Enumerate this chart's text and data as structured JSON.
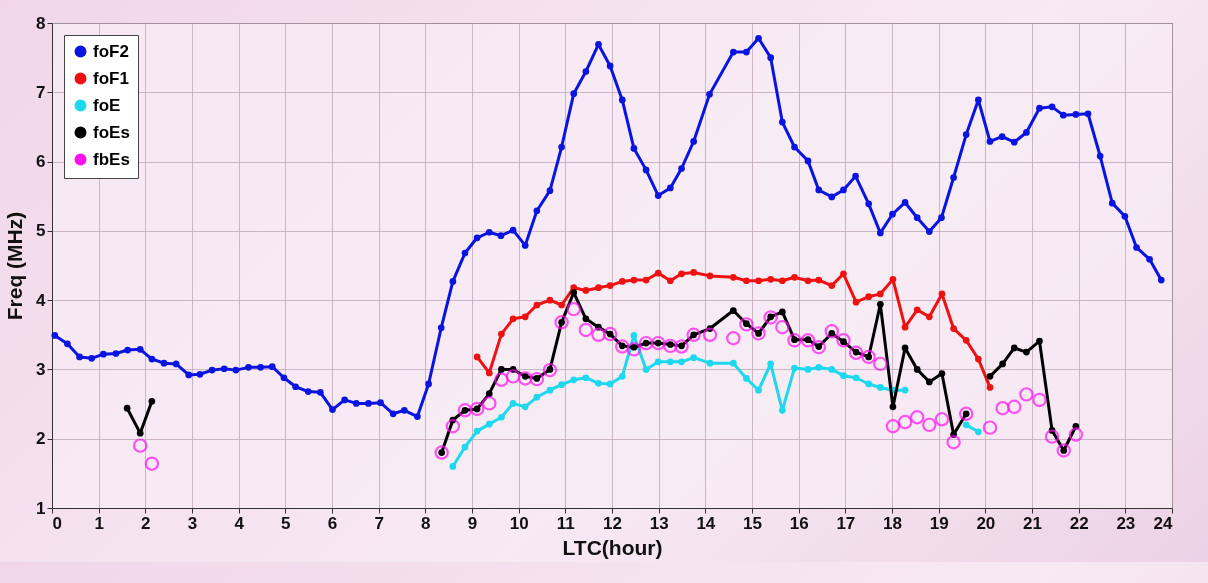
{
  "chart_data": {
    "type": "line",
    "xlabel": "LTC(hour)",
    "ylabel": "Freq (MHz)",
    "xlim": [
      0,
      24
    ],
    "ylim": [
      1,
      8
    ],
    "xticks": [
      0,
      1,
      2,
      3,
      4,
      5,
      6,
      7,
      8,
      9,
      10,
      11,
      12,
      13,
      14,
      15,
      16,
      17,
      18,
      19,
      20,
      21,
      22,
      23,
      24
    ],
    "yticks": [
      1,
      2,
      3,
      4,
      5,
      6,
      7,
      8
    ],
    "grid": true,
    "legend": "top left",
    "marker": "circle",
    "series": [
      {
        "name": "foF2",
        "color": "#0a14e0",
        "x": [
          0.06,
          0.33,
          0.59,
          0.85,
          1.1,
          1.37,
          1.62,
          1.89,
          2.14,
          2.4,
          2.66,
          2.93,
          3.17,
          3.43,
          3.69,
          3.94,
          4.21,
          4.47,
          4.72,
          4.97,
          5.22,
          5.49,
          5.75,
          6.01,
          6.27,
          6.52,
          6.78,
          7.04,
          7.31,
          7.55,
          7.83,
          8.07,
          8.34,
          8.59,
          8.85,
          9.11,
          9.37,
          9.62,
          9.88,
          10.14,
          10.39,
          10.67,
          10.92,
          11.18,
          11.44,
          11.71,
          11.96,
          12.22,
          12.47,
          12.73,
          12.99,
          13.25,
          13.49,
          13.75,
          14.09,
          14.6,
          14.88,
          15.14,
          15.4,
          15.65,
          15.91,
          16.2,
          16.43,
          16.71,
          16.96,
          17.22,
          17.5,
          17.75,
          18.01,
          18.28,
          18.54,
          18.8,
          19.06,
          19.32,
          19.59,
          19.85,
          20.1,
          20.36,
          20.62,
          20.88,
          21.16,
          21.43,
          21.67,
          21.94,
          22.2,
          22.46,
          22.72,
          22.99,
          23.24,
          23.52,
          23.77
        ],
        "values": [
          3.49,
          3.37,
          3.18,
          3.16,
          3.22,
          3.23,
          3.28,
          3.29,
          3.15,
          3.09,
          3.08,
          2.92,
          2.93,
          2.99,
          3.01,
          2.99,
          3.03,
          3.03,
          3.04,
          2.88,
          2.75,
          2.68,
          2.67,
          2.42,
          2.56,
          2.51,
          2.51,
          2.52,
          2.36,
          2.41,
          2.32,
          2.79,
          3.6,
          4.27,
          4.68,
          4.9,
          4.98,
          4.93,
          5.01,
          4.79,
          5.29,
          5.58,
          6.21,
          6.98,
          7.3,
          7.69,
          7.38,
          6.89,
          6.19,
          5.88,
          5.51,
          5.62,
          5.9,
          6.29,
          6.97,
          7.58,
          7.58,
          7.78,
          7.5,
          6.57,
          6.21,
          6.01,
          5.59,
          5.49,
          5.59,
          5.79,
          5.39,
          4.97,
          5.24,
          5.41,
          5.19,
          4.99,
          5.19,
          5.77,
          6.39,
          6.89,
          6.29,
          6.36,
          6.28,
          6.42,
          6.77,
          6.79,
          6.67,
          6.68,
          6.69,
          6.08,
          5.4,
          5.21,
          4.76,
          4.59,
          4.29
        ]
      },
      {
        "name": "foF1",
        "color": "#ee1111",
        "x": [
          9.11,
          9.37,
          9.63,
          9.88,
          10.14,
          10.39,
          10.67,
          10.92,
          11.18,
          11.44,
          11.71,
          11.96,
          12.22,
          12.47,
          12.73,
          12.99,
          13.25,
          13.49,
          13.75,
          14.1,
          14.6,
          14.88,
          15.14,
          15.4,
          15.65,
          15.91,
          16.2,
          16.43,
          16.71,
          16.96,
          17.23,
          17.5,
          17.75,
          18.02,
          18.28,
          18.54,
          18.8,
          19.07,
          19.32,
          19.59,
          19.85,
          20.1
        ],
        "values": [
          3.18,
          2.95,
          3.51,
          3.73,
          3.76,
          3.93,
          4.0,
          3.93,
          4.18,
          4.14,
          4.18,
          4.21,
          4.27,
          4.29,
          4.29,
          4.39,
          4.28,
          4.38,
          4.4,
          4.35,
          4.33,
          4.28,
          4.28,
          4.3,
          4.28,
          4.33,
          4.28,
          4.29,
          4.21,
          4.38,
          3.97,
          4.05,
          4.09,
          4.3,
          3.61,
          3.86,
          3.76,
          4.09,
          3.59,
          3.42,
          3.15,
          2.74
        ]
      },
      {
        "name": "foE",
        "color": "#1ed8ee",
        "x": [
          8.59,
          8.85,
          9.11,
          9.37,
          9.63,
          9.88,
          10.14,
          10.39,
          10.67,
          10.92,
          11.18,
          11.44,
          11.71,
          11.96,
          12.22,
          12.47,
          12.73,
          12.99,
          13.25,
          13.49,
          13.75,
          14.1,
          14.6,
          14.88,
          15.14,
          15.4,
          15.65,
          15.91,
          16.2,
          16.43,
          16.71,
          16.96,
          17.23,
          17.5,
          17.75,
          18.02,
          18.28,
          18.9,
          19.59,
          19.85
        ],
        "values": [
          1.6,
          1.88,
          2.11,
          2.21,
          2.31,
          2.51,
          2.46,
          2.6,
          2.7,
          2.78,
          2.85,
          2.88,
          2.8,
          2.79,
          2.9,
          3.49,
          3.0,
          3.11,
          3.11,
          3.11,
          3.17,
          3.09,
          3.09,
          2.87,
          2.7,
          3.08,
          2.41,
          3.02,
          3.0,
          3.03,
          3.0,
          2.91,
          2.88,
          2.79,
          2.74,
          2.7,
          2.7,
          null,
          2.2,
          2.1
        ]
      },
      {
        "name": "foEs",
        "color": "#000000",
        "x": [
          1.61,
          1.89,
          2.14,
          5.0,
          8.35,
          8.59,
          8.85,
          9.11,
          9.37,
          9.63,
          9.88,
          10.14,
          10.39,
          10.67,
          10.92,
          11.18,
          11.44,
          11.71,
          11.96,
          12.22,
          12.47,
          12.73,
          12.99,
          13.25,
          13.49,
          13.75,
          14.1,
          14.6,
          14.88,
          15.14,
          15.4,
          15.65,
          15.91,
          16.2,
          16.43,
          16.71,
          16.96,
          17.23,
          17.5,
          17.75,
          18.02,
          18.28,
          18.54,
          18.8,
          19.07,
          19.32,
          19.59,
          19.85,
          20.1,
          20.37,
          20.62,
          20.88,
          21.16,
          21.43,
          21.68,
          21.94
        ],
        "values": [
          2.44,
          2.08,
          2.54,
          null,
          1.8,
          2.27,
          2.41,
          2.43,
          2.65,
          3.0,
          3.0,
          2.9,
          2.87,
          3.0,
          3.68,
          4.11,
          3.73,
          3.61,
          3.51,
          3.34,
          3.32,
          3.38,
          3.38,
          3.36,
          3.34,
          3.5,
          3.59,
          3.85,
          3.66,
          3.52,
          3.76,
          3.83,
          3.43,
          3.43,
          3.33,
          3.52,
          3.4,
          3.25,
          3.18,
          3.94,
          2.46,
          3.31,
          3.0,
          2.82,
          2.94,
          2.06,
          2.36,
          null,
          2.9,
          3.08,
          3.31,
          3.25,
          3.41,
          2.12,
          1.83,
          2.18
        ]
      },
      {
        "name": "fbEs",
        "type": "scatter",
        "color": "#ff10f0",
        "x": [
          1.89,
          2.14,
          8.35,
          8.59,
          8.85,
          9.11,
          9.37,
          9.63,
          9.88,
          10.14,
          10.39,
          10.67,
          10.92,
          11.18,
          11.44,
          11.71,
          11.96,
          12.22,
          12.47,
          12.73,
          12.99,
          13.25,
          13.49,
          13.75,
          14.1,
          14.6,
          14.88,
          15.14,
          15.4,
          15.65,
          15.91,
          16.2,
          16.43,
          16.71,
          16.96,
          17.23,
          17.5,
          17.75,
          18.02,
          18.28,
          18.54,
          18.8,
          19.07,
          19.32,
          19.59,
          20.1,
          20.37,
          20.62,
          20.88,
          21.16,
          21.43,
          21.68,
          21.94
        ],
        "values": [
          1.9,
          1.64,
          1.8,
          2.18,
          2.41,
          2.43,
          2.51,
          2.85,
          2.9,
          2.87,
          2.86,
          2.99,
          3.68,
          3.87,
          3.57,
          3.5,
          3.51,
          3.33,
          3.29,
          3.38,
          3.38,
          3.34,
          3.33,
          3.5,
          3.5,
          3.45,
          3.65,
          3.52,
          3.75,
          3.61,
          3.42,
          3.42,
          3.32,
          3.55,
          3.42,
          3.24,
          3.18,
          3.08,
          2.18,
          2.24,
          2.31,
          2.2,
          2.28,
          1.95,
          2.36,
          2.16,
          2.44,
          2.46,
          2.64,
          2.56,
          2.03,
          1.83,
          2.06
        ]
      }
    ]
  }
}
